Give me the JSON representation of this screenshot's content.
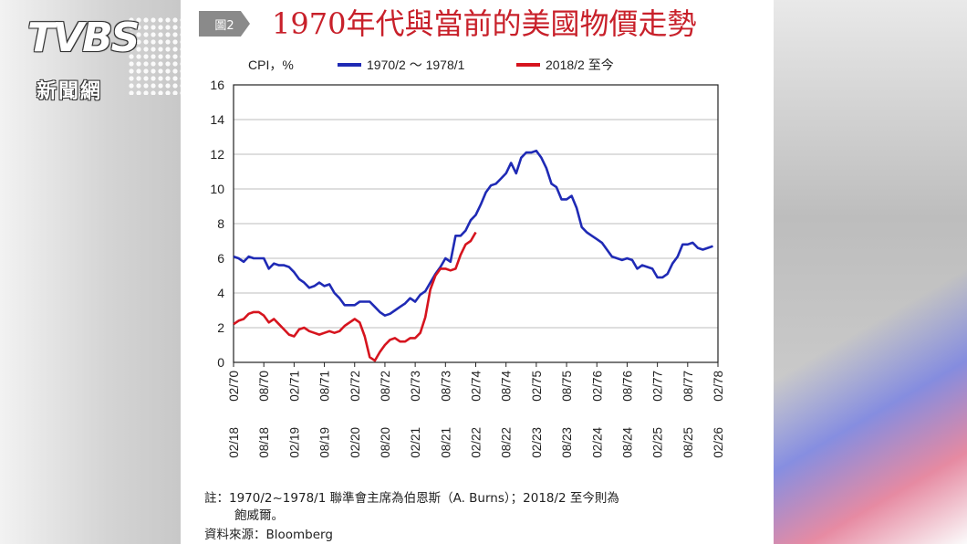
{
  "figure_tag": "圖2",
  "title": "1970年代與當前的美國物價走勢",
  "logo": {
    "text": "TVBS",
    "subtitle": "新聞網"
  },
  "colors": {
    "blue": "#1f2ab5",
    "red": "#d6141e",
    "title": "#c8202a"
  },
  "chart_data": {
    "type": "line",
    "ylabel": "CPI，%",
    "ylim": [
      0,
      16
    ],
    "y_ticks": [
      "0",
      "2",
      "4",
      "6",
      "8",
      "10",
      "12",
      "14",
      "16"
    ],
    "x_ticks_top": [
      "02/70",
      "08/70",
      "02/71",
      "08/71",
      "02/72",
      "08/72",
      "02/73",
      "08/73",
      "02/74",
      "08/74",
      "02/75",
      "08/75",
      "02/76",
      "08/76",
      "02/77",
      "08/77",
      "02/78"
    ],
    "x_ticks_bottom": [
      "02/18",
      "08/18",
      "02/19",
      "08/19",
      "02/20",
      "08/20",
      "02/21",
      "08/21",
      "02/22",
      "08/22",
      "02/23",
      "08/23",
      "02/24",
      "08/24",
      "02/25",
      "08/25",
      "02/26"
    ],
    "grid": true,
    "legend_position": "top",
    "series": [
      {
        "name": "1970/2 ～ 1978/1",
        "color": "#1f2ab5",
        "x": [
          0,
          1,
          2,
          3,
          4,
          5,
          6,
          7,
          8,
          9,
          10,
          11,
          12,
          13,
          14,
          15,
          16,
          17,
          18,
          19,
          20,
          21,
          22,
          23,
          24,
          25,
          26,
          27,
          28,
          29,
          30,
          31,
          32,
          33,
          34,
          35,
          36,
          37,
          38,
          39,
          40,
          41,
          42,
          43,
          44,
          45,
          46,
          47,
          48,
          49,
          50,
          51,
          52,
          53,
          54,
          55,
          56,
          57,
          58,
          59,
          60,
          61,
          62,
          63,
          64,
          65,
          66,
          67,
          68,
          69,
          70,
          71,
          72,
          73,
          74,
          75,
          76,
          77,
          78,
          79,
          80,
          81,
          82,
          83,
          84,
          85,
          86,
          87,
          88,
          89,
          90,
          91,
          92,
          93,
          94,
          95
        ],
        "values": [
          6.1,
          6.0,
          5.8,
          6.1,
          6.0,
          6.0,
          6.0,
          5.4,
          5.7,
          5.6,
          5.6,
          5.5,
          5.2,
          4.8,
          4.6,
          4.3,
          4.4,
          4.6,
          4.4,
          4.5,
          4.0,
          3.7,
          3.3,
          3.3,
          3.3,
          3.5,
          3.5,
          3.5,
          3.2,
          2.9,
          2.7,
          2.8,
          3.0,
          3.2,
          3.4,
          3.7,
          3.5,
          3.9,
          4.1,
          4.6,
          5.1,
          5.5,
          6.0,
          5.8,
          7.3,
          7.3,
          7.6,
          8.2,
          8.5,
          9.1,
          9.8,
          10.2,
          10.3,
          10.6,
          10.9,
          11.5,
          10.9,
          11.8,
          12.1,
          12.1,
          12.2,
          11.8,
          11.2,
          10.3,
          10.1,
          9.4,
          9.4,
          9.6,
          8.9,
          7.8,
          7.5,
          7.3,
          7.1,
          6.9,
          6.5,
          6.1,
          6.0,
          5.9,
          6.0,
          5.9,
          5.4,
          5.6,
          5.5,
          5.4,
          4.9,
          4.9,
          5.1,
          5.7,
          6.1,
          6.8,
          6.8,
          6.9,
          6.6,
          6.5,
          6.6,
          6.7
        ]
      },
      {
        "name": "2018/2 至今",
        "color": "#d6141e",
        "x": [
          0,
          1,
          2,
          3,
          4,
          5,
          6,
          7,
          8,
          9,
          10,
          11,
          12,
          13,
          14,
          15,
          16,
          17,
          18,
          19,
          20,
          21,
          22,
          23,
          24,
          25,
          26,
          27,
          28,
          29,
          30,
          31,
          32,
          33,
          34,
          35,
          36,
          37,
          38,
          39,
          40,
          41,
          42,
          43,
          44,
          45,
          46,
          47,
          48
        ],
        "values": [
          2.2,
          2.4,
          2.5,
          2.8,
          2.9,
          2.9,
          2.7,
          2.3,
          2.5,
          2.2,
          1.9,
          1.6,
          1.5,
          1.9,
          2.0,
          1.8,
          1.7,
          1.6,
          1.7,
          1.8,
          1.7,
          1.8,
          2.1,
          2.3,
          2.5,
          2.3,
          1.5,
          0.3,
          0.1,
          0.6,
          1.0,
          1.3,
          1.4,
          1.2,
          1.2,
          1.4,
          1.4,
          1.7,
          2.6,
          4.2,
          5.0,
          5.4,
          5.4,
          5.3,
          5.4,
          6.2,
          6.8,
          7.0,
          7.5
        ]
      }
    ]
  },
  "notes": {
    "line1": "註：1970/2~1978/1 聯準會主席為伯恩斯（A. Burns）；2018/2 至今則為",
    "line2": "飽威爾。",
    "source": "資料來源：Bloomberg"
  }
}
